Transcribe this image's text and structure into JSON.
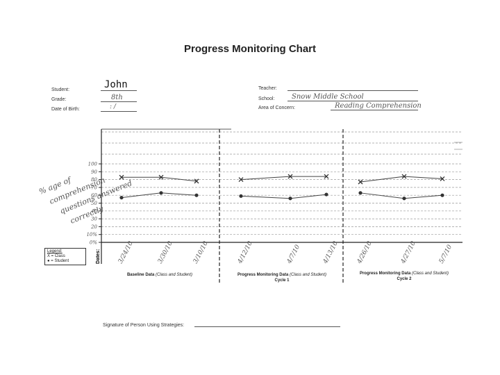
{
  "title": "Progress Monitoring Chart",
  "student": {
    "student_label": "Student:",
    "student_value": "John",
    "grade_label": "Grade:",
    "grade_value": "8th",
    "dob_label": "Date of Birth:",
    "dob_value": ": /"
  },
  "school_info": {
    "teacher_label": "Teacher:",
    "teacher_value": "",
    "school_label": "School:",
    "school_value": "Snow Middle School",
    "concern_label": "Area of Concern:",
    "concern_value": "Reading Comprehension"
  },
  "y_axis_note": [
    "% age of",
    "comprehension",
    "questions answered",
    "correctly"
  ],
  "y_ticks": [
    "100",
    "90",
    "80",
    "70",
    "60",
    "50",
    "40",
    "30",
    "20",
    "10%",
    "0%"
  ],
  "dates_label": "Dates:",
  "legend": {
    "title": "Legend:",
    "class_entry": "X = Class",
    "student_entry": "● = Student"
  },
  "sections": [
    {
      "label_pre": "Baseline Data ",
      "label_italic": "(Class and Student)",
      "sub": ""
    },
    {
      "label_pre": "Progress Monitoring Data ",
      "label_italic": "(Class and Student)",
      "sub": "Cycle 1"
    },
    {
      "label_pre": "Progress Monitoring Data ",
      "label_italic": "(Class and Student)",
      "sub": "Cycle 2"
    }
  ],
  "signature_label": "Signature of Person Using Strategies:",
  "colors": {
    "ink": "#222222",
    "handwriting": "#555555",
    "grid": "#9a9a9a"
  },
  "chart_data": {
    "type": "line",
    "title": "",
    "xlabel": "Dates:",
    "ylabel": "% age of comprehension questions answered correctly",
    "ylim": [
      0,
      100
    ],
    "x": [
      "3/24/10",
      "3/30/10",
      "3/10/10",
      "4/12/10",
      "4/7/10",
      "4/13/10",
      "4/26/10",
      "4/27/10",
      "5/7/10"
    ],
    "series": [
      {
        "name": "Class",
        "marker": "x",
        "segments": [
          [
            0,
            1,
            2
          ],
          [
            3,
            4,
            5
          ],
          [
            6,
            7,
            8
          ]
        ],
        "values": [
          83,
          83,
          78,
          80,
          84,
          84,
          77,
          84,
          81
        ]
      },
      {
        "name": "Student",
        "marker": "dot",
        "segments": [
          [
            0,
            1,
            2
          ],
          [
            3,
            4,
            5
          ],
          [
            6,
            7,
            8
          ]
        ],
        "values": [
          57,
          63,
          60,
          59,
          56,
          61,
          63,
          56,
          60
        ]
      }
    ],
    "grid": true
  }
}
